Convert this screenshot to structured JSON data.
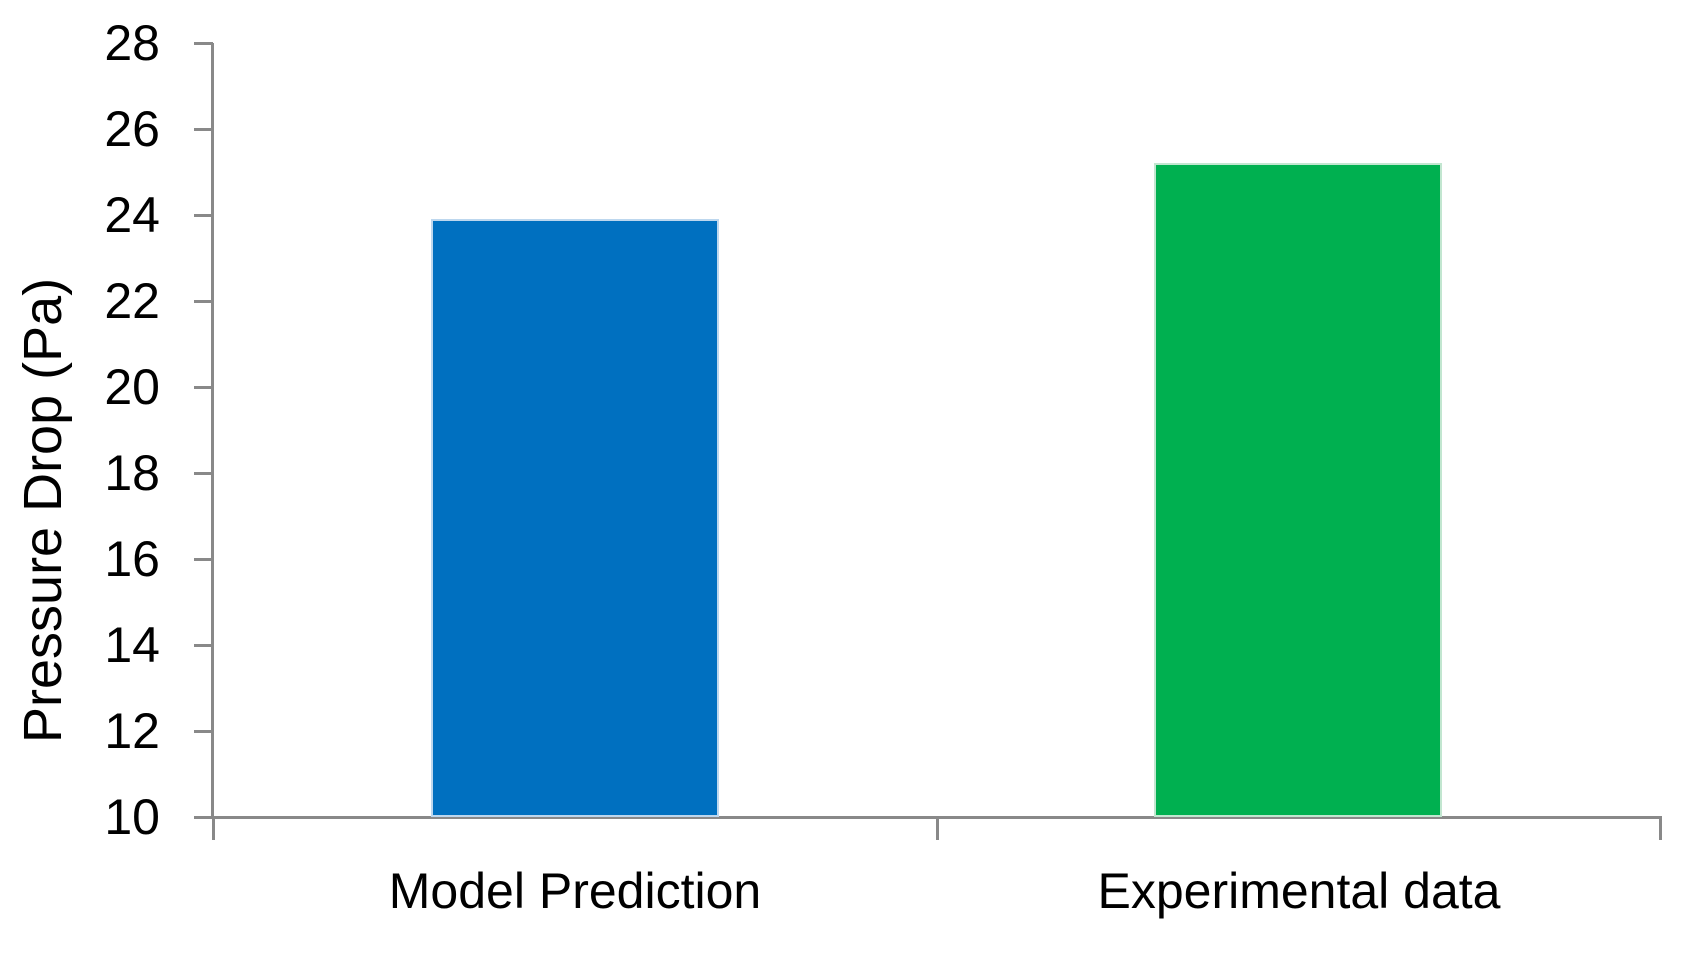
{
  "chart_data": {
    "type": "bar",
    "title": "",
    "xlabel": "",
    "ylabel": "Pressure Drop (Pa)",
    "categories": [
      "Model Prediction",
      "Experimental data"
    ],
    "values": [
      23.9,
      25.2
    ],
    "ylim": [
      10,
      28
    ],
    "ytick_step": 2,
    "yticks": [
      10,
      12,
      14,
      16,
      18,
      20,
      22,
      24,
      26,
      28
    ],
    "bar_colors": [
      "#0070C0",
      "#00B050"
    ],
    "bar_border_colors": [
      "#BDD7EE",
      "#C2E6D0"
    ],
    "axis_color": "#898989",
    "text_color": "#000000",
    "background_color": "#FFFFFF",
    "grid": false,
    "legend_position": "none"
  }
}
